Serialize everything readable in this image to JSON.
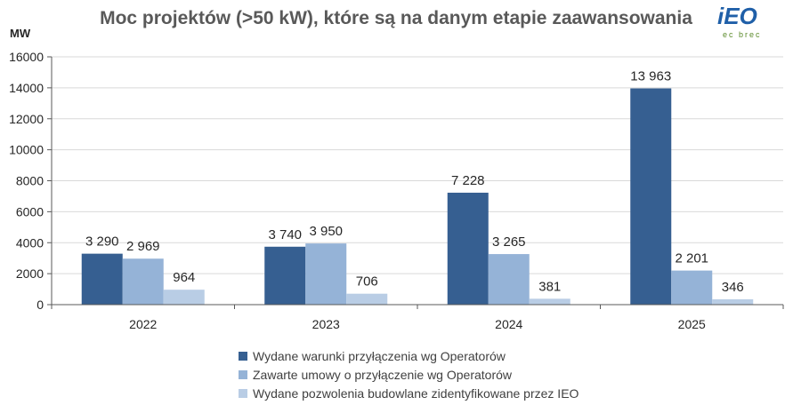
{
  "chart_data": {
    "type": "bar",
    "title": "Moc projektów (>50 kW), które są na danym etapie zaawansowania",
    "unit_label": "MW",
    "categories": [
      "2022",
      "2023",
      "2024",
      "2025"
    ],
    "ylim": [
      0,
      16000
    ],
    "yticks": [
      0,
      2000,
      4000,
      6000,
      8000,
      10000,
      12000,
      14000,
      16000
    ],
    "ytick_labels": [
      "0",
      "2000",
      "4000",
      "6000",
      "8000",
      "10000",
      "12000",
      "14000",
      "16000"
    ],
    "grid": true,
    "legend_position": "bottom",
    "series": [
      {
        "name": "Wydane warunki przyłączenia wg Operatorów",
        "color": "#365f91",
        "values": [
          3290,
          3740,
          7228,
          13963
        ],
        "labels": [
          "3 290",
          "3 740",
          "7 228",
          "13 963"
        ]
      },
      {
        "name": "Zawarte umowy o przyłączenie wg Operatorów",
        "color": "#95b3d7",
        "values": [
          2969,
          3950,
          3265,
          2201
        ],
        "labels": [
          "2 969",
          "3 950",
          "3 265",
          "2 201"
        ]
      },
      {
        "name": "Wydane pozwolenia budowlane zidentyfikowane przez IEO",
        "color": "#b9cde5",
        "values": [
          964,
          706,
          381,
          346
        ],
        "labels": [
          "964",
          "706",
          "381",
          "346"
        ]
      }
    ]
  },
  "logo": {
    "main": "iEO",
    "sub": "ec brec"
  }
}
